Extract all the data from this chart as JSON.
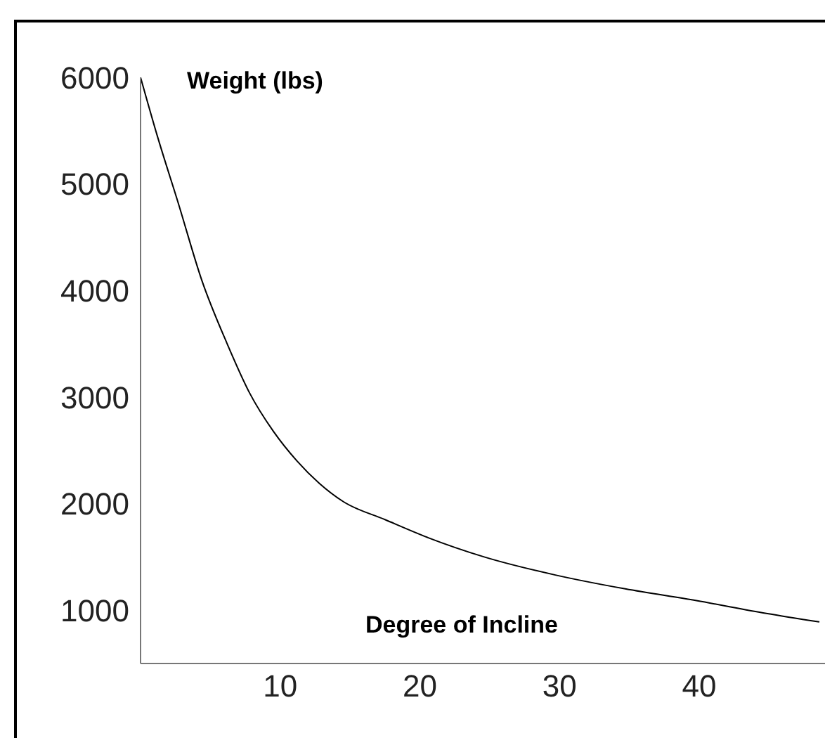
{
  "chart_data": {
    "type": "line",
    "xlabel": "Degree of Incline",
    "ylabel": "Weight (lbs)",
    "x": [
      0,
      1.2,
      2.7,
      4.4,
      6.2,
      7.8,
      9.5,
      11.2,
      12.8,
      14.5,
      17.5,
      20.6,
      24.6,
      29.7,
      34.7,
      39.8,
      44.8,
      48.6
    ],
    "series": [
      {
        "color": "#000000",
        "values": [
          6000,
          5450,
          4820,
          4090,
          3500,
          3040,
          2680,
          2400,
          2190,
          2020,
          1850,
          1680,
          1500,
          1330,
          1200,
          1090,
          970,
          890
        ]
      }
    ],
    "xlim": [
      0,
      49
    ],
    "xticks": [
      10,
      20,
      30,
      40
    ],
    "ylim": [
      500,
      6000
    ],
    "yticks": [
      1000,
      2000,
      3000,
      4000,
      5000,
      6000
    ],
    "grid": false,
    "legend": false,
    "marker": "none",
    "line_style": "solid"
  }
}
